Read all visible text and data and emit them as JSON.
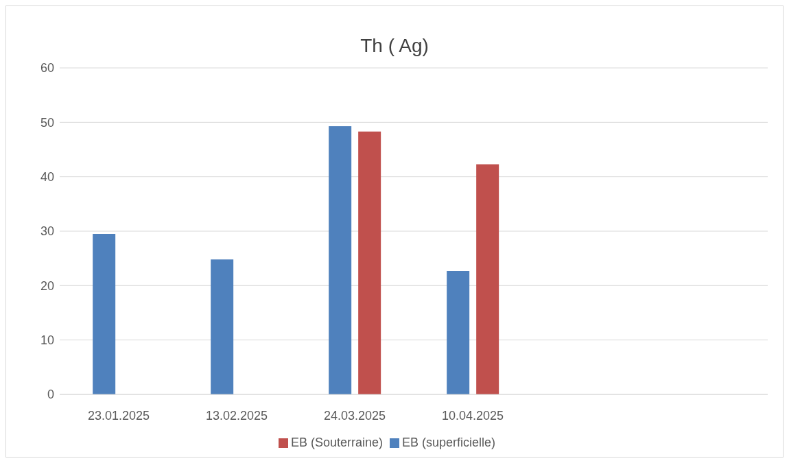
{
  "chart_data": {
    "type": "bar",
    "title": "Th ( Ag)",
    "categories": [
      "23.01.2025",
      "13.02.2025",
      "24.03.2025",
      "10.04.2025",
      null,
      null
    ],
    "series": [
      {
        "name": "EB (superficielle)",
        "color": "#4f81bd",
        "values": [
          29.5,
          24.8,
          49.3,
          22.7,
          null,
          null
        ]
      },
      {
        "name": "EB (Souterraine)",
        "color": "#c0504d",
        "values": [
          null,
          null,
          48.3,
          42.3,
          null,
          null
        ]
      }
    ],
    "ylim": [
      0,
      60
    ],
    "yticks": [
      0,
      10,
      20,
      30,
      40,
      50,
      60
    ],
    "grid": "y",
    "legend": "bottom"
  }
}
